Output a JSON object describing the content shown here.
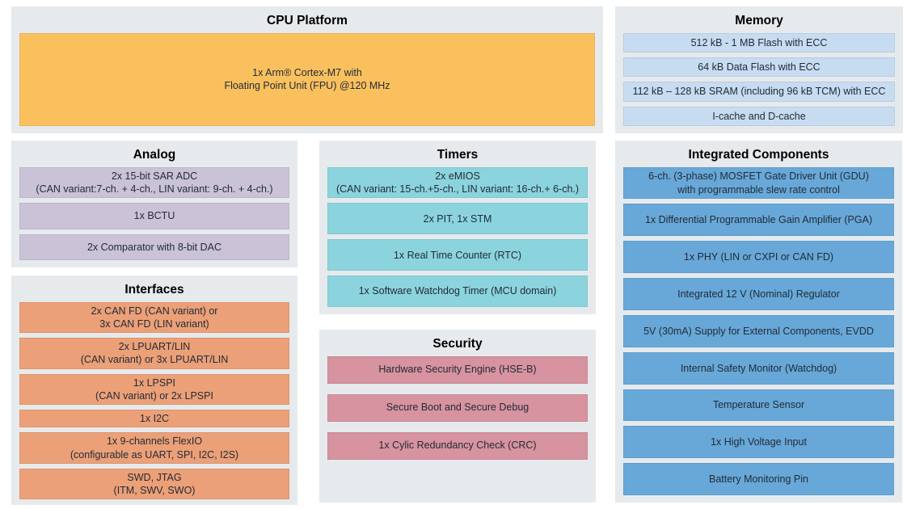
{
  "colors": {
    "panel_bg": "#e6eaed",
    "cpu_block": "#fbc05e",
    "memory_row": "#c7dcf0",
    "analog_row": "#cac3d8",
    "interfaces_row": "#eca077",
    "timers_row": "#8bd4dd",
    "security_row": "#d7939f",
    "integrated_row": "#68a8d8"
  },
  "sections": {
    "cpu": {
      "title": "CPU Platform",
      "rows": [
        "1x Arm® Cortex-M7 with\nFloating Point Unit (FPU) @120 MHz"
      ]
    },
    "memory": {
      "title": "Memory",
      "rows": [
        "512 kB - 1 MB Flash with ECC",
        "64 kB Data Flash with ECC",
        "112 kB – 128 kB SRAM (including 96 kB TCM) with ECC",
        "I-cache and D-cache"
      ]
    },
    "analog": {
      "title": "Analog",
      "rows": [
        "2x 15-bit SAR ADC\n(CAN variant:7-ch. + 4-ch., LIN variant: 9-ch. + 4-ch.)",
        "1x BCTU",
        "2x Comparator with 8-bit DAC"
      ]
    },
    "interfaces": {
      "title": "Interfaces",
      "rows": [
        "2x CAN FD (CAN variant) or\n3x CAN FD (LIN variant)",
        "2x LPUART/LIN\n(CAN variant) or 3x LPUART/LIN",
        "1x LPSPI\n(CAN variant) or 2x LPSPI",
        "1x I2C",
        "1x 9-channels FlexIO\n(configurable as UART, SPI, I2C, I2S)",
        "SWD, JTAG\n(ITM, SWV, SWO)"
      ]
    },
    "timers": {
      "title": "Timers",
      "rows": [
        "2x eMIOS\n(CAN variant: 15-ch.+5-ch., LIN variant: 16-ch.+ 6-ch.)",
        "2x PIT, 1x STM",
        "1x Real Time Counter (RTC)",
        "1x Software Watchdog Timer (MCU domain)"
      ]
    },
    "security": {
      "title": "Security",
      "rows": [
        "Hardware Security Engine (HSE-B)",
        "Secure Boot and Secure Debug",
        "1x Cylic Redundancy Check (CRC)"
      ]
    },
    "integrated": {
      "title": "Integrated Components",
      "rows": [
        "6-ch. (3-phase) MOSFET Gate Driver Unit (GDU)\nwith programmable slew rate control",
        "1x Differential Programmable Gain Amplifier (PGA)",
        "1x PHY (LIN or CXPI or CAN FD)",
        "Integrated 12 V (Nominal) Regulator",
        "5V (30mA) Supply for External Components, EVDD",
        "Internal Safety Monitor (Watchdog)",
        "Temperature Sensor",
        "1x High Voltage Input",
        "Battery Monitoring Pin"
      ]
    }
  }
}
